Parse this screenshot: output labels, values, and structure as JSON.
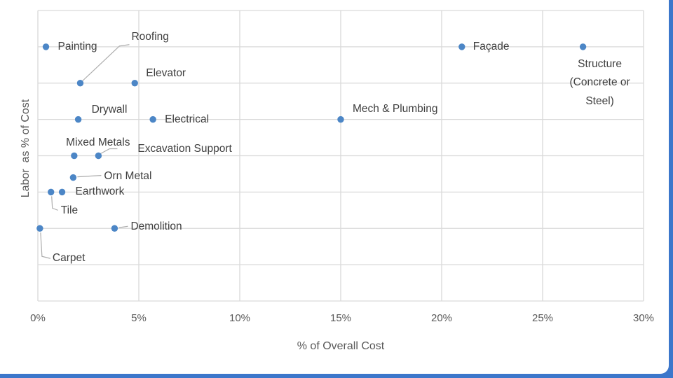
{
  "page": {
    "background": "#FFFFFF",
    "frame_color": "#3C77CB"
  },
  "chart_data": {
    "type": "scatter",
    "title": "",
    "xlabel": "% of Overall Cost",
    "ylabel": "Labor  as % of Cost",
    "xlim": [
      0,
      30
    ],
    "ylim": [
      0,
      8
    ],
    "x_ticks": [
      {
        "v": 0,
        "label": "0%"
      },
      {
        "v": 5,
        "label": "5%"
      },
      {
        "v": 10,
        "label": "10%"
      },
      {
        "v": 15,
        "label": "15%"
      },
      {
        "v": 20,
        "label": "20%"
      },
      {
        "v": 25,
        "label": "25%"
      },
      {
        "v": 30,
        "label": "30%"
      }
    ],
    "y_ticks": [],
    "y_tick_labels_shown": false,
    "grid": true,
    "legend": false,
    "marker_color": "#4C86C6",
    "gridline_color": "#D9D9D9",
    "leader_color": "#ADADAD",
    "label_color": "#3F3F3F",
    "axis_text_color": "#595959",
    "points": [
      {
        "label": "Painting",
        "x": 0.4,
        "y": 7,
        "align": "left",
        "offset": [
          17,
          0
        ]
      },
      {
        "label": "Roofing",
        "x": 2.1,
        "y": 6,
        "align": "left",
        "offset": [
          73,
          -66
        ],
        "leader": [
          [
            70,
            -55
          ],
          [
            56,
            -53
          ],
          [
            3,
            -3
          ]
        ]
      },
      {
        "label": "Elevator",
        "x": 4.8,
        "y": 6,
        "align": "left",
        "offset": [
          16,
          -14
        ]
      },
      {
        "label": "Drywall",
        "x": 2.0,
        "y": 5,
        "align": "left",
        "offset": [
          19,
          -14
        ]
      },
      {
        "label": "Electrical",
        "x": 5.7,
        "y": 5,
        "align": "left",
        "offset": [
          17,
          0
        ]
      },
      {
        "label": "Mech & Plumbing",
        "x": 15.0,
        "y": 5,
        "align": "left",
        "offset": [
          17,
          -15
        ]
      },
      {
        "label": "Façade",
        "x": 21.0,
        "y": 7,
        "align": "left",
        "offset": [
          16,
          0
        ]
      },
      {
        "label": "Structure (Concrete or\nSteel)",
        "x": 27.0,
        "y": 7,
        "align": "center-top",
        "offset": [
          24,
          12
        ]
      },
      {
        "label": "Mixed Metals",
        "x": 1.8,
        "y": 4,
        "align": "center",
        "offset": [
          34,
          -19
        ]
      },
      {
        "label": "Excavation Support",
        "x": 3.0,
        "y": 4,
        "align": "left",
        "offset": [
          56,
          -10
        ],
        "leader": [
          [
            3,
            -3
          ],
          [
            16,
            -10
          ],
          [
            27,
            -10
          ]
        ]
      },
      {
        "label": "Orn Metal",
        "x": 1.75,
        "y": 3.4,
        "align": "left",
        "offset": [
          44,
          -2
        ],
        "leader": [
          [
            6,
            -1
          ],
          [
            40,
            -3
          ]
        ]
      },
      {
        "label": "Earthwork",
        "x": 1.2,
        "y": 3,
        "align": "left",
        "offset": [
          19,
          0
        ]
      },
      {
        "label": "Tile",
        "x": 0.65,
        "y": 3,
        "align": "left",
        "offset": [
          14,
          27
        ],
        "leader": [
          [
            1,
            6
          ],
          [
            2,
            23
          ],
          [
            10,
            26
          ]
        ]
      },
      {
        "label": "Demolition",
        "x": 3.8,
        "y": 2,
        "align": "left",
        "offset": [
          23,
          -2
        ],
        "leader": [
          [
            6,
            -1
          ],
          [
            19,
            -3
          ]
        ]
      },
      {
        "label": "Carpet",
        "x": 0.1,
        "y": 2,
        "align": "left",
        "offset": [
          18,
          43
        ],
        "leader": [
          [
            1,
            6
          ],
          [
            3,
            40
          ],
          [
            15,
            43
          ]
        ]
      }
    ]
  }
}
